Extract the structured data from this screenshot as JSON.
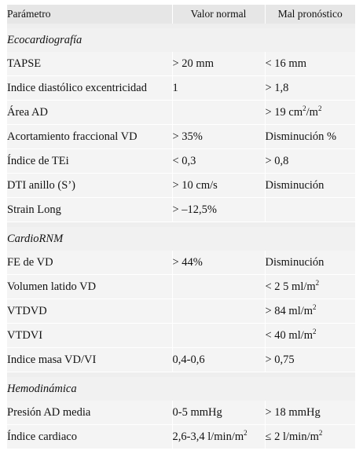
{
  "headers": [
    "Parámetro",
    "Valor normal",
    "Mal pronóstico"
  ],
  "sections": [
    {
      "title": "Ecocardiografía",
      "rows": [
        {
          "param": "TAPSE",
          "normal": "> 20 mm",
          "bad": "< 16 mm"
        },
        {
          "param": "Indice diastólico excentricidad",
          "normal": "1",
          "bad": "> 1,8"
        },
        {
          "param": "Área AD",
          "normal": "",
          "bad": "> 19 cm",
          "bad_sup1": "2",
          "bad_mid": "/m",
          "bad_sup2": "2"
        },
        {
          "param": "Acortamiento fraccional VD",
          "normal": "> 35%",
          "bad": "Disminución %"
        },
        {
          "param": "Índice de TEi",
          "normal": "< 0,3",
          "bad": "> 0,8"
        },
        {
          "param": "DTI anillo (S’)",
          "normal": "> 10 cm/s",
          "bad": "Disminución"
        },
        {
          "param": "Strain Long",
          "normal": "> –12,5%",
          "bad": ""
        }
      ]
    },
    {
      "title": "CardioRNM",
      "rows": [
        {
          "param": "FE de VD",
          "normal": "> 44%",
          "bad": "Disminución"
        },
        {
          "param": "Volumen latido VD",
          "normal": "",
          "bad": "< 2 5 ml/m",
          "bad_sup1": "2"
        },
        {
          "param": "VTDVD",
          "normal": "",
          "bad": "> 84 ml/m",
          "bad_sup1": "2"
        },
        {
          "param": "VTDVI",
          "normal": "",
          "bad": "< 40 ml/m",
          "bad_sup1": "2"
        },
        {
          "param": "Indice masa VD/VI",
          "normal": "0,4-0,6",
          "bad": "> 0,75"
        }
      ]
    },
    {
      "title": "Hemodinámica",
      "rows": [
        {
          "param": "Presión AD media",
          "normal": "0-5 mmHg",
          "bad": "> 18 mmHg"
        },
        {
          "param": "Índice cardiaco",
          "normal": "2,6-3,4 l/min/m",
          "normal_sup": "2",
          "bad": "≤ 2 l/min/m",
          "bad_sup1": "2"
        }
      ]
    }
  ]
}
